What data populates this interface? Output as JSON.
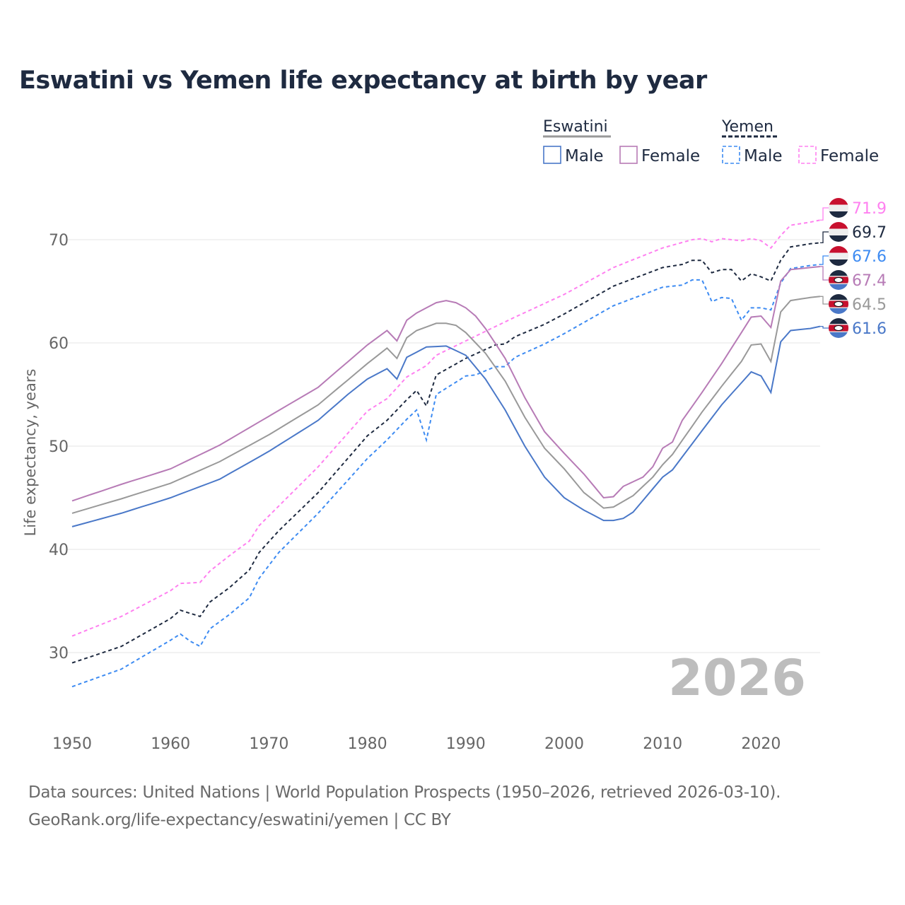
{
  "chart_data": {
    "type": "line",
    "title": "Eswatini vs Yemen life expectancy at birth by year",
    "xlabel": "",
    "ylabel": "Life expectancy, years",
    "xlim": [
      1950,
      2026
    ],
    "ylim": [
      24,
      75
    ],
    "x_ticks": [
      "1950",
      "1960",
      "1970",
      "1980",
      "1990",
      "2000",
      "2010",
      "2020"
    ],
    "y_ticks": [
      "30",
      "40",
      "50",
      "60",
      "70"
    ],
    "year_watermark": "2026",
    "legend": {
      "placement": "top-right",
      "groups": [
        {
          "name": "Eswatini",
          "items": [
            "Male",
            "Female"
          ]
        },
        {
          "name": "Yemen",
          "items": [
            "Male",
            "Female"
          ]
        }
      ]
    },
    "series": [
      {
        "name": "Yemen Female",
        "color": "#ff80f0",
        "dashed": true,
        "end_label": "71.9",
        "flag": "yemen",
        "points": [
          [
            1950,
            31.6
          ],
          [
            1955,
            33.5
          ],
          [
            1960,
            36
          ],
          [
            1961,
            36.7
          ],
          [
            1963,
            36.8
          ],
          [
            1964,
            37.9
          ],
          [
            1966,
            39.4
          ],
          [
            1968,
            40.8
          ],
          [
            1969,
            42.3
          ],
          [
            1971,
            44.2
          ],
          [
            1975,
            48
          ],
          [
            1980,
            53.4
          ],
          [
            1982,
            54.6
          ],
          [
            1984,
            56.7
          ],
          [
            1986,
            57.8
          ],
          [
            1987,
            58.8
          ],
          [
            1990,
            60.2
          ],
          [
            1995,
            62.5
          ],
          [
            2000,
            64.7
          ],
          [
            2005,
            67.3
          ],
          [
            2010,
            69.2
          ],
          [
            2013,
            70
          ],
          [
            2014,
            70.1
          ],
          [
            2015,
            69.8
          ],
          [
            2016,
            70.1
          ],
          [
            2018,
            69.9
          ],
          [
            2019,
            70.1
          ],
          [
            2020,
            69.9
          ],
          [
            2021,
            69.2
          ],
          [
            2022,
            70.4
          ],
          [
            2023,
            71.4
          ],
          [
            2025,
            71.7
          ],
          [
            2026,
            71.9
          ]
        ]
      },
      {
        "name": "Yemen",
        "color": "#1e2a40",
        "dashed": true,
        "end_label": "69.7",
        "flag": "yemen",
        "points": [
          [
            1950,
            29
          ],
          [
            1955,
            30.6
          ],
          [
            1960,
            33.3
          ],
          [
            1961,
            34.1
          ],
          [
            1963,
            33.5
          ],
          [
            1964,
            34.9
          ],
          [
            1966,
            36.3
          ],
          [
            1968,
            38
          ],
          [
            1969,
            39.7
          ],
          [
            1971,
            41.8
          ],
          [
            1975,
            45.5
          ],
          [
            1980,
            51
          ],
          [
            1982,
            52.5
          ],
          [
            1984,
            54.5
          ],
          [
            1985,
            55.4
          ],
          [
            1986,
            53.9
          ],
          [
            1987,
            56.9
          ],
          [
            1990,
            58.5
          ],
          [
            1993,
            59.8
          ],
          [
            1994,
            59.9
          ],
          [
            1995,
            60.6
          ],
          [
            1998,
            61.8
          ],
          [
            2000,
            62.8
          ],
          [
            2005,
            65.5
          ],
          [
            2010,
            67.3
          ],
          [
            2012,
            67.6
          ],
          [
            2013,
            68
          ],
          [
            2014,
            68
          ],
          [
            2015,
            66.8
          ],
          [
            2016,
            67.1
          ],
          [
            2017,
            67.1
          ],
          [
            2018,
            66
          ],
          [
            2019,
            66.7
          ],
          [
            2020,
            66.4
          ],
          [
            2021,
            66
          ],
          [
            2022,
            68
          ],
          [
            2023,
            69.3
          ],
          [
            2025,
            69.6
          ],
          [
            2026,
            69.7
          ]
        ]
      },
      {
        "name": "Yemen Male",
        "color": "#3d8bf2",
        "dashed": true,
        "end_label": "67.6",
        "flag": "yemen",
        "points": [
          [
            1950,
            26.7
          ],
          [
            1955,
            28.4
          ],
          [
            1960,
            31.2
          ],
          [
            1961,
            31.8
          ],
          [
            1962,
            31.1
          ],
          [
            1963,
            30.6
          ],
          [
            1964,
            32.3
          ],
          [
            1966,
            33.7
          ],
          [
            1968,
            35.3
          ],
          [
            1969,
            37.2
          ],
          [
            1971,
            39.7
          ],
          [
            1975,
            43.5
          ],
          [
            1980,
            48.8
          ],
          [
            1982,
            50.6
          ],
          [
            1984,
            52.6
          ],
          [
            1985,
            53.5
          ],
          [
            1986,
            50.6
          ],
          [
            1987,
            55
          ],
          [
            1990,
            56.8
          ],
          [
            1991,
            56.9
          ],
          [
            1993,
            57.7
          ],
          [
            1994,
            57.7
          ],
          [
            1995,
            58.6
          ],
          [
            1998,
            59.9
          ],
          [
            2000,
            60.9
          ],
          [
            2005,
            63.6
          ],
          [
            2010,
            65.4
          ],
          [
            2012,
            65.6
          ],
          [
            2013,
            66.1
          ],
          [
            2014,
            66.1
          ],
          [
            2015,
            64
          ],
          [
            2016,
            64.4
          ],
          [
            2017,
            64.3
          ],
          [
            2018,
            62.2
          ],
          [
            2019,
            63.4
          ],
          [
            2020,
            63.4
          ],
          [
            2021,
            63.2
          ],
          [
            2022,
            65.8
          ],
          [
            2023,
            67.2
          ],
          [
            2025,
            67.5
          ],
          [
            2026,
            67.6
          ]
        ]
      },
      {
        "name": "Eswatini Female",
        "color": "#b77bb6",
        "dashed": false,
        "end_label": "67.4",
        "flag": "eswatini",
        "points": [
          [
            1950,
            44.7
          ],
          [
            1955,
            46.3
          ],
          [
            1960,
            47.8
          ],
          [
            1965,
            50.1
          ],
          [
            1970,
            52.9
          ],
          [
            1975,
            55.7
          ],
          [
            1980,
            59.8
          ],
          [
            1982,
            61.2
          ],
          [
            1983,
            60.2
          ],
          [
            1984,
            62.2
          ],
          [
            1985,
            62.9
          ],
          [
            1987,
            63.9
          ],
          [
            1988,
            64.1
          ],
          [
            1989,
            63.9
          ],
          [
            1990,
            63.4
          ],
          [
            1991,
            62.6
          ],
          [
            1992,
            61.4
          ],
          [
            1994,
            58.5
          ],
          [
            1996,
            54.7
          ],
          [
            1998,
            51.4
          ],
          [
            2000,
            49.3
          ],
          [
            2002,
            47.3
          ],
          [
            2004,
            45
          ],
          [
            2005,
            45.1
          ],
          [
            2006,
            46.1
          ],
          [
            2008,
            47
          ],
          [
            2009,
            48
          ],
          [
            2010,
            49.8
          ],
          [
            2011,
            50.4
          ],
          [
            2012,
            52.5
          ],
          [
            2014,
            55.2
          ],
          [
            2016,
            58
          ],
          [
            2018,
            61
          ],
          [
            2019,
            62.5
          ],
          [
            2020,
            62.6
          ],
          [
            2021,
            61.5
          ],
          [
            2022,
            66
          ],
          [
            2023,
            67.1
          ],
          [
            2025,
            67.3
          ],
          [
            2026,
            67.4
          ]
        ]
      },
      {
        "name": "Eswatini",
        "color": "#999999",
        "dashed": false,
        "end_label": "64.5",
        "flag": "eswatini",
        "points": [
          [
            1950,
            43.5
          ],
          [
            1955,
            44.9
          ],
          [
            1960,
            46.4
          ],
          [
            1965,
            48.5
          ],
          [
            1970,
            51.1
          ],
          [
            1975,
            54
          ],
          [
            1980,
            58
          ],
          [
            1982,
            59.5
          ],
          [
            1983,
            58.5
          ],
          [
            1984,
            60.5
          ],
          [
            1985,
            61.2
          ],
          [
            1987,
            61.9
          ],
          [
            1988,
            61.9
          ],
          [
            1989,
            61.7
          ],
          [
            1990,
            61
          ],
          [
            1992,
            59
          ],
          [
            1994,
            56.3
          ],
          [
            1996,
            52.8
          ],
          [
            1998,
            49.8
          ],
          [
            2000,
            47.8
          ],
          [
            2002,
            45.5
          ],
          [
            2004,
            44
          ],
          [
            2005,
            44.1
          ],
          [
            2007,
            45.2
          ],
          [
            2009,
            47
          ],
          [
            2010,
            48.2
          ],
          [
            2011,
            49.2
          ],
          [
            2014,
            53.3
          ],
          [
            2016,
            55.8
          ],
          [
            2018,
            58.2
          ],
          [
            2019,
            59.8
          ],
          [
            2020,
            59.9
          ],
          [
            2021,
            58.2
          ],
          [
            2022,
            63
          ],
          [
            2023,
            64.1
          ],
          [
            2025,
            64.4
          ],
          [
            2026,
            64.5
          ]
        ]
      },
      {
        "name": "Eswatini Male",
        "color": "#4a78c8",
        "dashed": false,
        "end_label": "61.6",
        "flag": "eswatini",
        "points": [
          [
            1950,
            42.2
          ],
          [
            1955,
            43.5
          ],
          [
            1960,
            45
          ],
          [
            1965,
            46.8
          ],
          [
            1970,
            49.5
          ],
          [
            1975,
            52.5
          ],
          [
            1978,
            55
          ],
          [
            1980,
            56.5
          ],
          [
            1982,
            57.5
          ],
          [
            1983,
            56.5
          ],
          [
            1984,
            58.6
          ],
          [
            1986,
            59.6
          ],
          [
            1988,
            59.7
          ],
          [
            1990,
            58.8
          ],
          [
            1992,
            56.5
          ],
          [
            1994,
            53.5
          ],
          [
            1996,
            50
          ],
          [
            1998,
            47
          ],
          [
            2000,
            45
          ],
          [
            2002,
            43.8
          ],
          [
            2004,
            42.8
          ],
          [
            2005,
            42.8
          ],
          [
            2006,
            43
          ],
          [
            2007,
            43.6
          ],
          [
            2010,
            47
          ],
          [
            2011,
            47.7
          ],
          [
            2014,
            51.5
          ],
          [
            2016,
            54
          ],
          [
            2019,
            57.2
          ],
          [
            2020,
            56.8
          ],
          [
            2021,
            55.2
          ],
          [
            2022,
            60.1
          ],
          [
            2023,
            61.2
          ],
          [
            2025,
            61.4
          ],
          [
            2026,
            61.6
          ]
        ]
      }
    ]
  },
  "sources": {
    "line1": "Data sources: United Nations | World Population Prospects (1950–2026, retrieved 2026-03-10).",
    "line2": "GeoRank.org/life-expectancy/eswatini/yemen | CC BY"
  }
}
